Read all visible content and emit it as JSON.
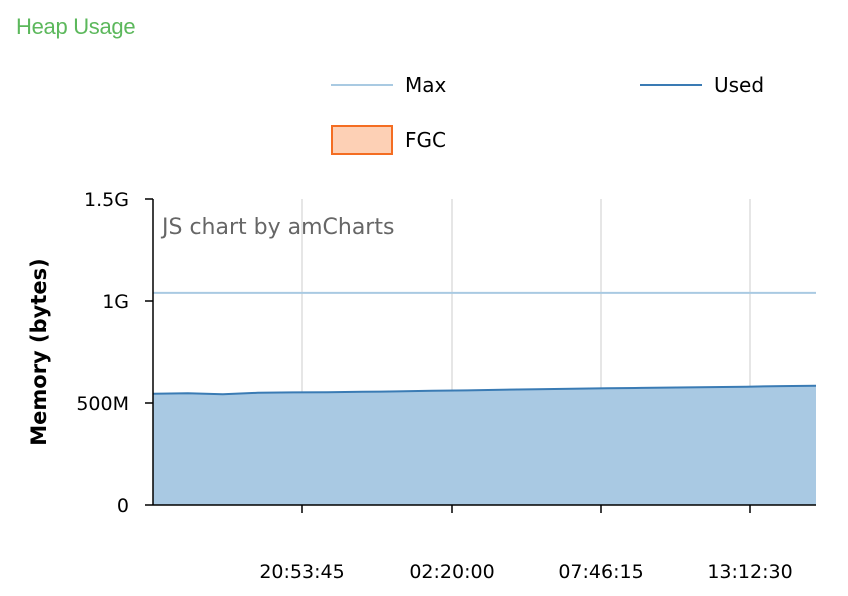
{
  "header": {
    "title": "Heap Usage"
  },
  "legend": [
    {
      "label": "Max",
      "color": "#a9cae2",
      "kind": "line"
    },
    {
      "label": "Used",
      "color": "#3a7bb4",
      "kind": "line"
    },
    {
      "label": "FGC",
      "color": "#fdd0b5",
      "border": "#f46d22",
      "kind": "swatch"
    }
  ],
  "credit": "JS chart by amCharts",
  "chart_data": {
    "type": "area",
    "title": "",
    "xlabel": "",
    "ylabel": "Memory (bytes)",
    "ylim": [
      0,
      1500000000
    ],
    "y_ticks": [
      {
        "value": 0,
        "label": "0"
      },
      {
        "value": 500000000,
        "label": "500M"
      },
      {
        "value": 1000000000,
        "label": "1G"
      },
      {
        "value": 1500000000,
        "label": "1.5G"
      }
    ],
    "x_ticks": [
      "20:53:45",
      "02:20:00",
      "07:46:15",
      "13:12:30"
    ],
    "grid": true,
    "legend_position": "top",
    "series": [
      {
        "name": "Max",
        "type": "line",
        "color": "#a9cae2",
        "constant_value": 1040000000
      },
      {
        "name": "Used",
        "type": "area",
        "color": "#3a7bb4",
        "fill": "#a9c9e3",
        "values": [
          545000000,
          548000000,
          543000000,
          550000000,
          552000000,
          553000000,
          555000000,
          557000000,
          560000000,
          562000000,
          565000000,
          567000000,
          570000000,
          572000000,
          574000000,
          576000000,
          578000000,
          580000000,
          583000000,
          585000000
        ]
      },
      {
        "name": "FGC",
        "type": "area",
        "color": "#fdd0b5",
        "values": []
      }
    ]
  }
}
